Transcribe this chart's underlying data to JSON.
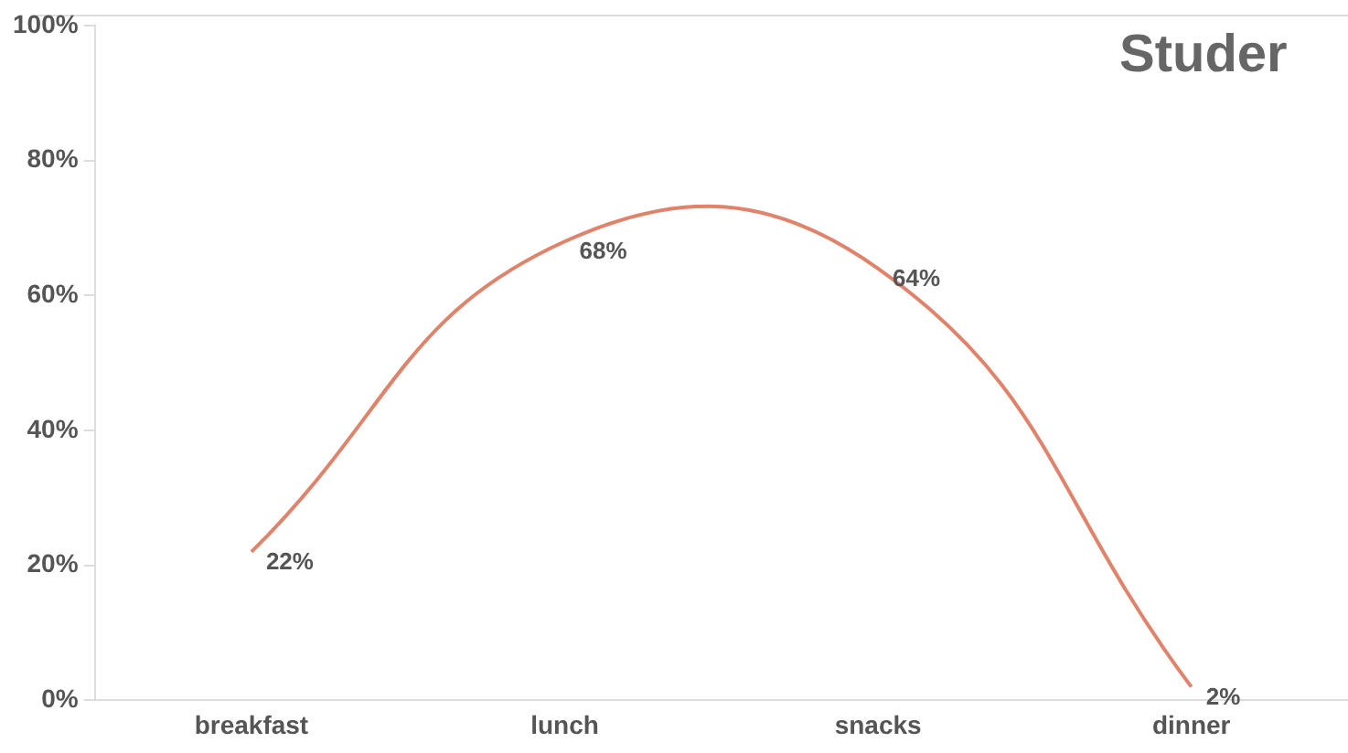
{
  "chart_data": {
    "type": "line",
    "title": "Studer",
    "categories": [
      "breakfast",
      "lunch",
      "snacks",
      "dinner"
    ],
    "series": [
      {
        "color": "#e0836a",
        "values": [
          22,
          68,
          64,
          2
        ]
      }
    ],
    "ylim": [
      0,
      100
    ],
    "yticks": [
      {
        "value": 0,
        "label": "0%"
      },
      {
        "value": 20,
        "label": "20%"
      },
      {
        "value": 40,
        "label": "40%"
      },
      {
        "value": 60,
        "label": "60%"
      },
      {
        "value": 80,
        "label": "80%"
      },
      {
        "value": 100,
        "label": "100%"
      }
    ],
    "grid": false,
    "legend": false,
    "marker": "none",
    "line_style": "solid",
    "value_labels": [
      "22%",
      "68%",
      "64%",
      "2%"
    ]
  }
}
